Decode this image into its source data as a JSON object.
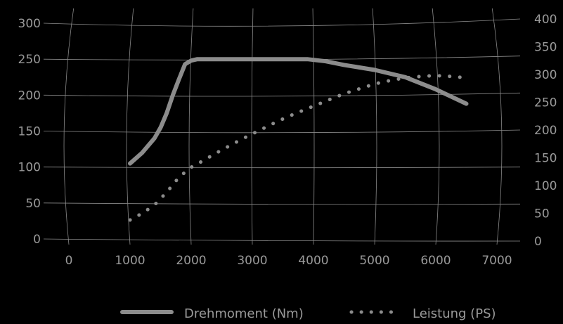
{
  "chart_data": {
    "type": "line",
    "x_ticks": [
      "0",
      "1000",
      "2000",
      "3000",
      "4000",
      "5000",
      "6000",
      "7000"
    ],
    "x_tick_values": [
      0,
      1000,
      2000,
      3000,
      4000,
      5000,
      6000,
      7000
    ],
    "y_left_ticks": [
      "0",
      "50",
      "100",
      "150",
      "200",
      "250",
      "300"
    ],
    "y_left_tick_values": [
      0,
      50,
      100,
      150,
      200,
      250,
      300
    ],
    "y_right_ticks": [
      "0",
      "50",
      "100",
      "150",
      "200",
      "250",
      "300",
      "350",
      "400"
    ],
    "y_right_tick_values": [
      0,
      50,
      100,
      150,
      200,
      250,
      300,
      350,
      400
    ],
    "xlim": [
      0,
      7000
    ],
    "ylim_left": [
      0,
      300
    ],
    "ylim_right": [
      0,
      400
    ],
    "grid": true,
    "legend_position": "bottom",
    "series": [
      {
        "name": "Drehmoment (Nm)",
        "axis": "left",
        "style": "solid",
        "color": "#8c8c8c",
        "x": [
          1000,
          1200,
          1400,
          1500,
          1600,
          1700,
          1800,
          1900,
          2000,
          2100,
          2300,
          2600,
          3000,
          3500,
          3900,
          4200,
          4500,
          5000,
          5500,
          6000,
          6500
        ],
        "y": [
          105,
          120,
          140,
          155,
          175,
          200,
          222,
          243,
          248,
          250,
          250,
          250,
          250,
          250,
          250,
          247,
          242,
          235,
          225,
          208,
          188
        ]
      },
      {
        "name": "Leistung (PS)",
        "axis": "right",
        "style": "dotted",
        "color": "#8c8c8c",
        "x": [
          1000,
          1200,
          1400,
          1600,
          1800,
          2000,
          2200,
          2400,
          2600,
          2800,
          3000,
          3200,
          3400,
          3600,
          3800,
          4000,
          4200,
          4400,
          4600,
          4800,
          5000,
          5200,
          5400,
          5600,
          5800,
          6000,
          6200,
          6400,
          6550
        ],
        "y": [
          38,
          50,
          65,
          88,
          115,
          133,
          145,
          158,
          170,
          182,
          193,
          204,
          215,
          225,
          234,
          243,
          252,
          261,
          269,
          276,
          283,
          288,
          292,
          295,
          297,
          298,
          297,
          295,
          293
        ]
      }
    ]
  }
}
